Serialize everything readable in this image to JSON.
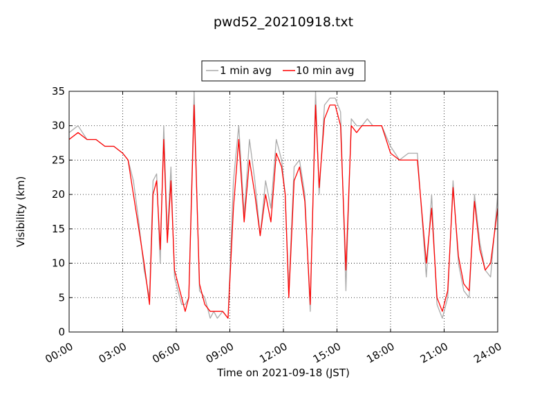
{
  "chart_data": {
    "type": "line",
    "title": "pwd52_20210918.txt",
    "xlabel": "Time on 2021-09-18 (JST)",
    "ylabel": "Visibility (km)",
    "xlim": [
      0,
      24
    ],
    "ylim": [
      0,
      35
    ],
    "x_ticks": [
      "00:00",
      "03:00",
      "06:00",
      "09:00",
      "12:00",
      "15:00",
      "18:00",
      "21:00",
      "24:00"
    ],
    "y_ticks": [
      "0",
      "5",
      "10",
      "15",
      "20",
      "25",
      "30",
      "35"
    ],
    "grid": true,
    "legend_position": "top-center",
    "series": [
      {
        "name": "1 min avg",
        "color": "#aaaaaa",
        "x_hours": [
          0.0,
          0.5,
          1.0,
          1.5,
          2.0,
          2.5,
          3.0,
          3.3,
          3.6,
          3.9,
          4.2,
          4.5,
          4.7,
          4.9,
          5.1,
          5.3,
          5.5,
          5.7,
          5.9,
          6.1,
          6.3,
          6.5,
          6.7,
          7.0,
          7.3,
          7.6,
          7.9,
          8.1,
          8.3,
          8.6,
          8.9,
          9.2,
          9.5,
          9.8,
          10.1,
          10.4,
          10.7,
          11.0,
          11.3,
          11.6,
          11.9,
          12.1,
          12.3,
          12.6,
          12.9,
          13.2,
          13.5,
          13.8,
          14.0,
          14.3,
          14.6,
          14.9,
          15.2,
          15.5,
          15.8,
          16.1,
          16.4,
          16.7,
          17.0,
          17.5,
          18.0,
          18.5,
          19.0,
          19.5,
          20.0,
          20.3,
          20.6,
          20.9,
          21.2,
          21.5,
          21.8,
          22.1,
          22.4,
          22.7,
          23.0,
          23.3,
          23.6,
          24.0
        ],
        "values": [
          29,
          30,
          28,
          28,
          27,
          27,
          26,
          25,
          22,
          16,
          9,
          5,
          22,
          23,
          10,
          30,
          14,
          24,
          8,
          6,
          4,
          4,
          5,
          35,
          6,
          5,
          2,
          3,
          2,
          3,
          2,
          22,
          30,
          17,
          28,
          22,
          14,
          22,
          18,
          28,
          25,
          20,
          6,
          24,
          25,
          20,
          3,
          35,
          20,
          33,
          34,
          34,
          32,
          6,
          31,
          30,
          30,
          31,
          30,
          30,
          27,
          25,
          26,
          26,
          8,
          20,
          4,
          2,
          5,
          22,
          10,
          6,
          5,
          20,
          13,
          9,
          8,
          20
        ]
      },
      {
        "name": "10 min avg",
        "color": "#ff0000",
        "x_hours": [
          0.0,
          0.5,
          1.0,
          1.5,
          2.0,
          2.5,
          3.0,
          3.3,
          3.6,
          3.9,
          4.2,
          4.5,
          4.7,
          4.9,
          5.1,
          5.3,
          5.5,
          5.7,
          5.9,
          6.1,
          6.3,
          6.5,
          6.7,
          7.0,
          7.3,
          7.6,
          7.9,
          8.1,
          8.3,
          8.6,
          8.9,
          9.2,
          9.5,
          9.8,
          10.1,
          10.4,
          10.7,
          11.0,
          11.3,
          11.6,
          11.9,
          12.1,
          12.3,
          12.6,
          12.9,
          13.2,
          13.5,
          13.8,
          14.0,
          14.3,
          14.6,
          14.9,
          15.2,
          15.5,
          15.8,
          16.1,
          16.4,
          16.7,
          17.0,
          17.5,
          18.0,
          18.5,
          19.0,
          19.5,
          20.0,
          20.3,
          20.6,
          20.9,
          21.2,
          21.5,
          21.8,
          22.1,
          22.4,
          22.7,
          23.0,
          23.3,
          23.6,
          24.0
        ],
        "values": [
          28,
          29,
          28,
          28,
          27,
          27,
          26,
          25,
          20,
          15,
          10,
          4,
          20,
          22,
          12,
          28,
          13,
          22,
          9,
          7,
          5,
          3,
          5,
          33,
          7,
          4,
          3,
          3,
          3,
          3,
          2,
          18,
          28,
          16,
          25,
          20,
          14,
          20,
          16,
          26,
          24,
          20,
          5,
          22,
          24,
          19,
          4,
          33,
          21,
          31,
          33,
          33,
          30,
          9,
          30,
          29,
          30,
          30,
          30,
          30,
          26,
          25,
          25,
          25,
          10,
          18,
          5,
          3,
          6,
          21,
          11,
          7,
          6,
          19,
          12,
          9,
          10,
          18
        ]
      }
    ]
  }
}
